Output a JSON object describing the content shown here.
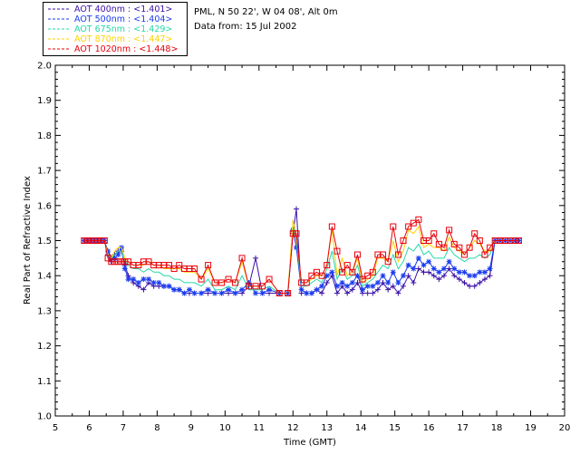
{
  "header": {
    "location": "PML, N 50 22', W 04 08', Alt 0m",
    "date": "Data from: 15 Jul 2002"
  },
  "chart_data": {
    "type": "line",
    "xlabel": "Time (GMT)",
    "ylabel": "Real Part of Refractive Index",
    "xlim": [
      5,
      20
    ],
    "ylim": [
      1.0,
      2.0
    ],
    "xticks": [
      "5",
      "6",
      "7",
      "8",
      "9",
      "10",
      "11",
      "12",
      "13",
      "14",
      "15",
      "16",
      "17",
      "18",
      "19",
      "20"
    ],
    "yticks": [
      "1.0",
      "1.1",
      "1.2",
      "1.3",
      "1.4",
      "1.5",
      "1.6",
      "1.7",
      "1.8",
      "1.9",
      "2.0"
    ],
    "x": [
      5.85,
      5.95,
      6.05,
      6.15,
      6.25,
      6.35,
      6.45,
      6.55,
      6.65,
      6.75,
      6.85,
      6.95,
      7.05,
      7.15,
      7.3,
      7.45,
      7.6,
      7.75,
      7.9,
      8.05,
      8.2,
      8.35,
      8.5,
      8.65,
      8.8,
      8.95,
      9.1,
      9.3,
      9.5,
      9.7,
      9.9,
      10.1,
      10.3,
      10.5,
      10.7,
      10.9,
      11.1,
      11.3,
      11.6,
      11.85,
      12.0,
      12.1,
      12.25,
      12.4,
      12.55,
      12.7,
      12.85,
      13.0,
      13.15,
      13.3,
      13.45,
      13.6,
      13.75,
      13.9,
      14.05,
      14.2,
      14.35,
      14.5,
      14.65,
      14.8,
      14.95,
      15.1,
      15.25,
      15.4,
      15.55,
      15.7,
      15.85,
      16.0,
      16.15,
      16.3,
      16.45,
      16.6,
      16.75,
      16.9,
      17.05,
      17.2,
      17.35,
      17.5,
      17.65,
      17.8,
      17.95,
      18.1,
      18.25,
      18.4,
      18.55,
      18.65
    ],
    "series": [
      {
        "name": "AOT  400nm : <1.401>",
        "color": "#3a10a8",
        "marker": "plus",
        "values": [
          1.5,
          1.5,
          1.5,
          1.5,
          1.5,
          1.5,
          1.5,
          1.46,
          1.44,
          1.46,
          1.47,
          1.47,
          1.43,
          1.4,
          1.38,
          1.37,
          1.36,
          1.38,
          1.37,
          1.37,
          1.37,
          1.37,
          1.36,
          1.36,
          1.35,
          1.35,
          1.35,
          1.35,
          1.35,
          1.35,
          1.35,
          1.35,
          1.35,
          1.35,
          1.37,
          1.45,
          1.35,
          1.35,
          1.35,
          1.35,
          1.52,
          1.59,
          1.35,
          1.35,
          1.35,
          1.36,
          1.35,
          1.38,
          1.4,
          1.35,
          1.37,
          1.35,
          1.36,
          1.38,
          1.35,
          1.35,
          1.35,
          1.36,
          1.38,
          1.36,
          1.37,
          1.35,
          1.37,
          1.4,
          1.38,
          1.42,
          1.41,
          1.41,
          1.4,
          1.39,
          1.4,
          1.42,
          1.4,
          1.39,
          1.38,
          1.37,
          1.37,
          1.38,
          1.39,
          1.4,
          1.5,
          1.5,
          1.5,
          1.5,
          1.5,
          1.5
        ]
      },
      {
        "name": "AOT  500nm : <1.404>",
        "color": "#1b3cf0",
        "marker": "star",
        "values": [
          1.5,
          1.5,
          1.5,
          1.5,
          1.5,
          1.5,
          1.5,
          1.47,
          1.45,
          1.45,
          1.46,
          1.48,
          1.42,
          1.39,
          1.39,
          1.38,
          1.39,
          1.39,
          1.38,
          1.38,
          1.37,
          1.37,
          1.36,
          1.36,
          1.35,
          1.36,
          1.35,
          1.35,
          1.36,
          1.35,
          1.35,
          1.36,
          1.35,
          1.36,
          1.38,
          1.35,
          1.35,
          1.36,
          1.35,
          1.35,
          1.53,
          1.48,
          1.36,
          1.35,
          1.35,
          1.36,
          1.37,
          1.4,
          1.41,
          1.37,
          1.38,
          1.37,
          1.38,
          1.4,
          1.36,
          1.37,
          1.37,
          1.38,
          1.4,
          1.38,
          1.41,
          1.38,
          1.4,
          1.43,
          1.42,
          1.45,
          1.43,
          1.44,
          1.42,
          1.41,
          1.42,
          1.44,
          1.42,
          1.41,
          1.41,
          1.4,
          1.4,
          1.41,
          1.41,
          1.42,
          1.5,
          1.5,
          1.5,
          1.5,
          1.5,
          1.5
        ]
      },
      {
        "name": "AOT  675nm : <1.429>",
        "color": "#26d8a8",
        "marker": "none",
        "values": [
          1.5,
          1.5,
          1.5,
          1.5,
          1.5,
          1.5,
          1.5,
          1.46,
          1.45,
          1.46,
          1.47,
          1.47,
          1.44,
          1.43,
          1.42,
          1.42,
          1.41,
          1.42,
          1.41,
          1.41,
          1.4,
          1.4,
          1.39,
          1.39,
          1.38,
          1.38,
          1.38,
          1.37,
          1.39,
          1.36,
          1.36,
          1.37,
          1.36,
          1.4,
          1.36,
          1.36,
          1.36,
          1.37,
          1.35,
          1.35,
          1.54,
          1.5,
          1.37,
          1.37,
          1.38,
          1.39,
          1.38,
          1.42,
          1.47,
          1.39,
          1.42,
          1.39,
          1.4,
          1.43,
          1.37,
          1.38,
          1.39,
          1.41,
          1.43,
          1.42,
          1.46,
          1.42,
          1.44,
          1.48,
          1.47,
          1.49,
          1.46,
          1.47,
          1.45,
          1.45,
          1.45,
          1.48,
          1.46,
          1.45,
          1.44,
          1.45,
          1.45,
          1.46,
          1.45,
          1.46,
          1.5,
          1.5,
          1.5,
          1.5,
          1.5,
          1.5
        ]
      },
      {
        "name": "AOT  870nm : <1.447>",
        "color": "#ffd200",
        "marker": "none",
        "values": [
          1.5,
          1.5,
          1.5,
          1.5,
          1.5,
          1.5,
          1.5,
          1.46,
          1.45,
          1.47,
          1.48,
          1.48,
          1.45,
          1.44,
          1.43,
          1.43,
          1.43,
          1.44,
          1.43,
          1.43,
          1.42,
          1.42,
          1.42,
          1.42,
          1.41,
          1.41,
          1.41,
          1.39,
          1.42,
          1.38,
          1.38,
          1.39,
          1.38,
          1.44,
          1.37,
          1.37,
          1.37,
          1.39,
          1.35,
          1.35,
          1.56,
          1.51,
          1.38,
          1.38,
          1.39,
          1.4,
          1.4,
          1.43,
          1.53,
          1.4,
          1.45,
          1.4,
          1.41,
          1.45,
          1.38,
          1.39,
          1.4,
          1.45,
          1.45,
          1.44,
          1.5,
          1.44,
          1.47,
          1.53,
          1.52,
          1.54,
          1.48,
          1.49,
          1.48,
          1.48,
          1.47,
          1.51,
          1.48,
          1.47,
          1.46,
          1.48,
          1.5,
          1.49,
          1.47,
          1.47,
          1.5,
          1.5,
          1.5,
          1.5,
          1.5,
          1.5
        ]
      },
      {
        "name": "AOT 1020nm : <1.448>",
        "color": "#e8000b",
        "marker": "square",
        "values": [
          1.5,
          1.5,
          1.5,
          1.5,
          1.5,
          1.5,
          1.5,
          1.45,
          1.44,
          1.44,
          1.44,
          1.44,
          1.44,
          1.44,
          1.43,
          1.43,
          1.44,
          1.44,
          1.43,
          1.43,
          1.43,
          1.43,
          1.42,
          1.43,
          1.42,
          1.42,
          1.42,
          1.39,
          1.43,
          1.38,
          1.38,
          1.39,
          1.38,
          1.45,
          1.37,
          1.37,
          1.37,
          1.39,
          1.35,
          1.35,
          1.52,
          1.52,
          1.38,
          1.38,
          1.4,
          1.41,
          1.4,
          1.43,
          1.54,
          1.47,
          1.41,
          1.43,
          1.41,
          1.46,
          1.39,
          1.4,
          1.41,
          1.46,
          1.46,
          1.44,
          1.54,
          1.46,
          1.5,
          1.54,
          1.55,
          1.56,
          1.5,
          1.5,
          1.52,
          1.49,
          1.48,
          1.53,
          1.49,
          1.48,
          1.46,
          1.48,
          1.52,
          1.5,
          1.46,
          1.48,
          1.5,
          1.5,
          1.5,
          1.5,
          1.5,
          1.5
        ]
      }
    ]
  }
}
